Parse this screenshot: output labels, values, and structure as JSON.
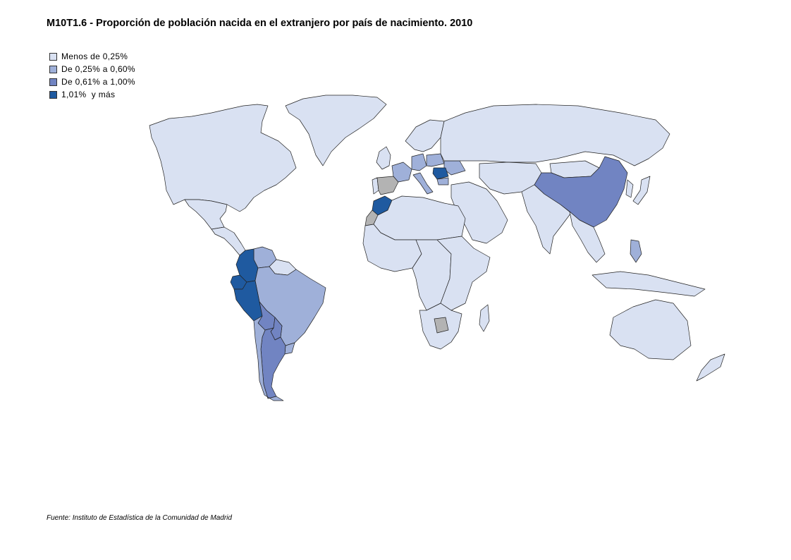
{
  "title": "M10T1.6 - Proporción de población nacida en el extranjero por país de nacimiento. 2010",
  "legend": [
    {
      "label": "Menos de 0,25%",
      "color": "#d9e1f2"
    },
    {
      "label": "De 0,25% a 0,60%",
      "color": "#9fb0d9"
    },
    {
      "label": "De 0,61% a 1,00%",
      "color": "#7184c2"
    },
    {
      "label": "1,01%  y más",
      "color": "#1f5aa0"
    }
  ],
  "no_data_color": "#b3b3b3",
  "source": "Fuente: Instituto de Estadística de la Comunidad de Madrid",
  "map_regions": [
    {
      "name": "north-america",
      "class": 0
    },
    {
      "name": "greenland",
      "class": 0
    },
    {
      "name": "mexico",
      "class": 0
    },
    {
      "name": "central-america",
      "class": 0
    },
    {
      "name": "venezuela",
      "class": 1
    },
    {
      "name": "colombia",
      "class": 3
    },
    {
      "name": "ecuador",
      "class": 3
    },
    {
      "name": "peru",
      "class": 3
    },
    {
      "name": "bolivia",
      "class": 2
    },
    {
      "name": "brazil",
      "class": 1
    },
    {
      "name": "paraguay",
      "class": 2
    },
    {
      "name": "argentina",
      "class": 2
    },
    {
      "name": "chile",
      "class": 1
    },
    {
      "name": "uruguay",
      "class": 1
    },
    {
      "name": "guianas",
      "class": 0
    },
    {
      "name": "spain",
      "class": -1
    },
    {
      "name": "portugal",
      "class": 0
    },
    {
      "name": "france",
      "class": 1
    },
    {
      "name": "italy",
      "class": 1
    },
    {
      "name": "germany",
      "class": 1
    },
    {
      "name": "poland",
      "class": 1
    },
    {
      "name": "ukraine",
      "class": 1
    },
    {
      "name": "romania",
      "class": 3
    },
    {
      "name": "bulgaria",
      "class": 1
    },
    {
      "name": "uk",
      "class": 0
    },
    {
      "name": "scandinavia",
      "class": 0
    },
    {
      "name": "russia",
      "class": 0
    },
    {
      "name": "morocco",
      "class": 3
    },
    {
      "name": "western-sahara",
      "class": -1
    },
    {
      "name": "north-africa",
      "class": 0
    },
    {
      "name": "west-africa",
      "class": 0
    },
    {
      "name": "central-africa",
      "class": 0
    },
    {
      "name": "east-africa",
      "class": 0
    },
    {
      "name": "southern-africa",
      "class": 0
    },
    {
      "name": "botswana",
      "class": -1
    },
    {
      "name": "madagascar",
      "class": 0
    },
    {
      "name": "middle-east",
      "class": 0
    },
    {
      "name": "central-asia",
      "class": 0
    },
    {
      "name": "india",
      "class": 0
    },
    {
      "name": "china",
      "class": 2
    },
    {
      "name": "mongolia",
      "class": 0
    },
    {
      "name": "korea",
      "class": 0
    },
    {
      "name": "japan",
      "class": 0
    },
    {
      "name": "southeast-asia",
      "class": 0
    },
    {
      "name": "philippines",
      "class": 1
    },
    {
      "name": "indonesia",
      "class": 0
    },
    {
      "name": "australia",
      "class": 0
    },
    {
      "name": "new-zealand",
      "class": 0
    }
  ]
}
